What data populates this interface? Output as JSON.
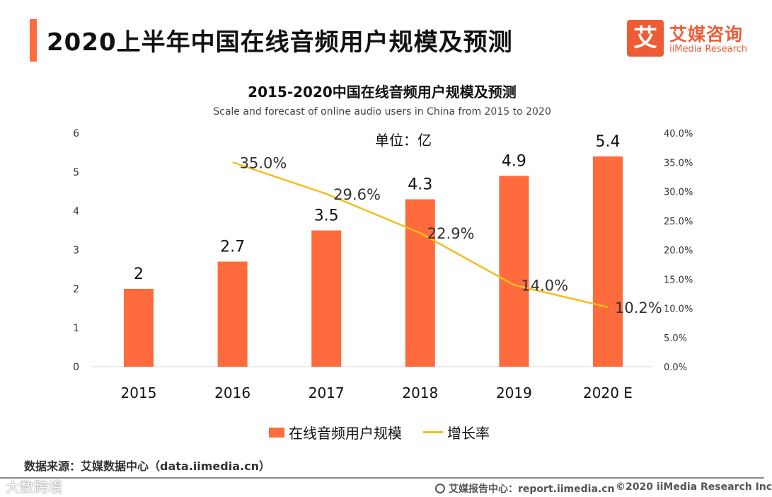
{
  "page_title": "2020上半年中国在线音频用户规模及预测",
  "logo": {
    "mark": "艾",
    "name_cn": "艾媒咨询",
    "name_en": "iiMedia Research"
  },
  "unit_label": "单位：亿",
  "source_text": "数据来源：艾媒数据中心（data.iimedia.cn）",
  "watermark": "大数跨境",
  "footer": {
    "report": "艾媒报告中心：report.iimedia.cn",
    "copyright": "©2020  iiMedia Research  Inc"
  },
  "colors": {
    "accent": "#ff6b3d",
    "bar": "#ff6b3d",
    "line": "#f7bd1c"
  },
  "chart_data": {
    "type": "bar",
    "title": "2015-2020中国在线音频用户规模及预测",
    "subtitle": "Scale and forecast of online audio users in China from 2015 to 2020",
    "categories": [
      "2015",
      "2016",
      "2017",
      "2018",
      "2019",
      "2020 E"
    ],
    "series": [
      {
        "name": "在线音频用户规模",
        "type": "bar",
        "axis": "left",
        "values": [
          2.0,
          2.7,
          3.5,
          4.3,
          4.9,
          5.4
        ],
        "labels": [
          "2",
          "2.7",
          "3.5",
          "4.3",
          "4.9",
          "5.4"
        ]
      },
      {
        "name": "增长率",
        "type": "line",
        "axis": "right",
        "values": [
          null,
          35.0,
          29.6,
          22.9,
          14.0,
          10.2
        ],
        "labels": [
          "",
          "35.0%",
          "29.6%",
          "22.9%",
          "14.0%",
          "10.2%"
        ]
      }
    ],
    "y_left": {
      "range": [
        0,
        6
      ],
      "ticks": [
        "0",
        "1",
        "2",
        "3",
        "4",
        "5",
        "6"
      ],
      "tick_values": [
        0,
        1,
        2,
        3,
        4,
        5,
        6
      ]
    },
    "y_right": {
      "range": [
        0,
        40
      ],
      "ticks": [
        "0.0%",
        "5.0%",
        "10.0%",
        "15.0%",
        "20.0%",
        "25.0%",
        "30.0%",
        "35.0%",
        "40.0%"
      ],
      "tick_values": [
        0,
        5,
        10,
        15,
        20,
        25,
        30,
        35,
        40
      ]
    },
    "grid": false,
    "legend": "bottom"
  }
}
